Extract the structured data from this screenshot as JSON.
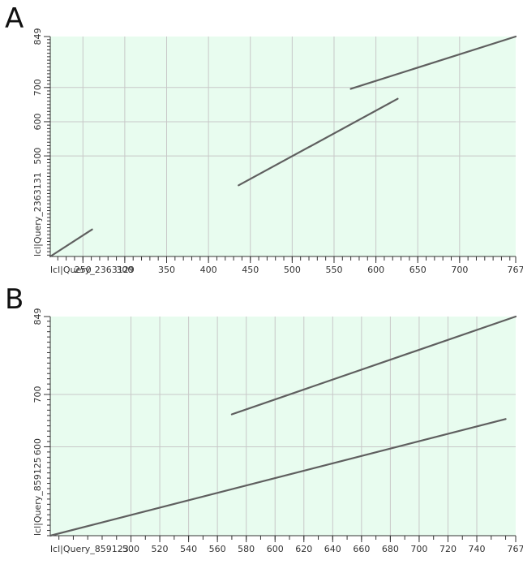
{
  "panels": [
    {
      "letter": "A",
      "chart_data": {
        "type": "line",
        "title": "",
        "xlabel": "lcl|Query_2363129",
        "ylabel": "lcl|Query_2363131",
        "xlim": [
          211,
          767
        ],
        "ylim": [
          206,
          849
        ],
        "x_tick_labels": [
          "250",
          "300",
          "350",
          "400",
          "450",
          "500",
          "550",
          "600",
          "650",
          "700",
          "767"
        ],
        "y_tick_labels": [
          "500",
          "600",
          "700",
          "849"
        ],
        "grid": true,
        "background_color": "#e8fcef",
        "line_color": "#5f5f5f",
        "series": [
          {
            "segments": [
              [
                [
                  211,
                  206
                ],
                [
                  261,
                  285
                ]
              ]
            ]
          },
          {
            "segments": [
              [
                [
                  436,
                  414
                ],
                [
                  626,
                  667
                ]
              ]
            ]
          },
          {
            "segments": [
              [
                [
                  570,
                  696
                ],
                [
                  767,
                  849
                ]
              ]
            ]
          }
        ]
      }
    },
    {
      "letter": "B",
      "chart_data": {
        "type": "line",
        "title": "",
        "xlabel": "lcl|Query_859123",
        "ylabel": "lcl|Query_859125",
        "xlim": [
          444,
          767
        ],
        "ylim": [
          430,
          849
        ],
        "x_tick_labels": [
          "500",
          "520",
          "540",
          "560",
          "580",
          "600",
          "620",
          "640",
          "660",
          "680",
          "700",
          "720",
          "740",
          "767"
        ],
        "y_tick_labels": [
          "600",
          "700",
          "849"
        ],
        "grid": true,
        "background_color": "#e8fcef",
        "line_color": "#5f5f5f",
        "series": [
          {
            "segments": [
              [
                [
                  444,
                  430
                ],
                [
                  760,
                  653
                ]
              ]
            ]
          },
          {
            "segments": [
              [
                [
                  570,
                  662
                ],
                [
                  767,
                  849
                ]
              ]
            ]
          }
        ]
      }
    }
  ]
}
